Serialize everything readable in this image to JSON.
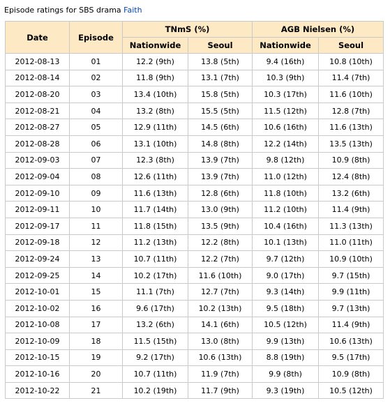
{
  "caption": {
    "prefix": "Episode ratings for SBS drama ",
    "link": "Faith"
  },
  "headers": {
    "date": "Date",
    "episode": "Episode",
    "tnms": "TNmS (%)",
    "agb": "AGB Nielsen (%)",
    "tnms_nationwide": "Nationwide",
    "tnms_seoul": "Seoul",
    "agb_nationwide": "Nationwide",
    "agb_seoul": "Seoul"
  },
  "rows": [
    {
      "date": "2012-08-13",
      "episode": "01",
      "tnms_nationwide": "12.2 (9th)",
      "tnms_seoul": "13.8 (5th)",
      "agb_nationwide": "9.4 (16th)",
      "agb_seoul": "10.8 (10th)"
    },
    {
      "date": "2012-08-14",
      "episode": "02",
      "tnms_nationwide": "11.8 (9th)",
      "tnms_seoul": "13.1 (7th)",
      "agb_nationwide": "10.3 (9th)",
      "agb_seoul": "11.4 (7th)"
    },
    {
      "date": "2012-08-20",
      "episode": "03",
      "tnms_nationwide": "13.4 (10th)",
      "tnms_seoul": "15.8 (5th)",
      "agb_nationwide": "10.3 (17th)",
      "agb_seoul": "11.6 (10th)"
    },
    {
      "date": "2012-08-21",
      "episode": "04",
      "tnms_nationwide": "13.2 (8th)",
      "tnms_seoul": "15.5 (5th)",
      "agb_nationwide": "11.5 (12th)",
      "agb_seoul": "12.8 (7th)"
    },
    {
      "date": "2012-08-27",
      "episode": "05",
      "tnms_nationwide": "12.9 (11th)",
      "tnms_seoul": "14.5 (6th)",
      "agb_nationwide": "10.6 (16th)",
      "agb_seoul": "11.6 (13th)"
    },
    {
      "date": "2012-08-28",
      "episode": "06",
      "tnms_nationwide": "13.1 (10th)",
      "tnms_seoul": "14.8 (8th)",
      "agb_nationwide": "12.2 (14th)",
      "agb_seoul": "13.5 (13th)"
    },
    {
      "date": "2012-09-03",
      "episode": "07",
      "tnms_nationwide": "12.3 (8th)",
      "tnms_seoul": "13.9 (7th)",
      "agb_nationwide": "9.8 (12th)",
      "agb_seoul": "10.9 (8th)"
    },
    {
      "date": "2012-09-04",
      "episode": "08",
      "tnms_nationwide": "12.6 (11th)",
      "tnms_seoul": "13.9 (7th)",
      "agb_nationwide": "11.0 (12th)",
      "agb_seoul": "12.4 (8th)"
    },
    {
      "date": "2012-09-10",
      "episode": "09",
      "tnms_nationwide": "11.6 (13th)",
      "tnms_seoul": "12.8 (6th)",
      "agb_nationwide": "11.8 (10th)",
      "agb_seoul": "13.2 (6th)"
    },
    {
      "date": "2012-09-11",
      "episode": "10",
      "tnms_nationwide": "11.7 (14th)",
      "tnms_seoul": "13.0 (9th)",
      "agb_nationwide": "11.2 (10th)",
      "agb_seoul": "11.4 (9th)"
    },
    {
      "date": "2012-09-17",
      "episode": "11",
      "tnms_nationwide": "11.8 (15th)",
      "tnms_seoul": "13.5 (9th)",
      "agb_nationwide": "10.4 (16th)",
      "agb_seoul": "11.3 (13th)"
    },
    {
      "date": "2012-09-18",
      "episode": "12",
      "tnms_nationwide": "11.2 (13th)",
      "tnms_seoul": "12.2 (8th)",
      "agb_nationwide": "10.1 (13th)",
      "agb_seoul": "11.0 (11th)"
    },
    {
      "date": "2012-09-24",
      "episode": "13",
      "tnms_nationwide": "10.7 (11th)",
      "tnms_seoul": "12.2 (7th)",
      "agb_nationwide": "9.7 (12th)",
      "agb_seoul": "10.9 (10th)"
    },
    {
      "date": "2012-09-25",
      "episode": "14",
      "tnms_nationwide": "10.2 (17th)",
      "tnms_seoul": "11.6 (10th)",
      "agb_nationwide": "9.0 (17th)",
      "agb_seoul": "9.7 (15th)"
    },
    {
      "date": "2012-10-01",
      "episode": "15",
      "tnms_nationwide": "11.1 (7th)",
      "tnms_seoul": "12.7 (7th)",
      "agb_nationwide": "9.3 (14th)",
      "agb_seoul": "9.9 (11th)"
    },
    {
      "date": "2012-10-02",
      "episode": "16",
      "tnms_nationwide": "9.6 (17th)",
      "tnms_seoul": "10.2 (13th)",
      "agb_nationwide": "9.5 (18th)",
      "agb_seoul": "9.7 (13th)"
    },
    {
      "date": "2012-10-08",
      "episode": "17",
      "tnms_nationwide": "13.2 (6th)",
      "tnms_seoul": "14.1 (6th)",
      "agb_nationwide": "10.5 (12th)",
      "agb_seoul": "11.4 (9th)"
    },
    {
      "date": "2012-10-09",
      "episode": "18",
      "tnms_nationwide": "11.5 (15th)",
      "tnms_seoul": "13.0 (8th)",
      "agb_nationwide": "9.9 (13th)",
      "agb_seoul": "10.6 (13th)"
    },
    {
      "date": "2012-10-15",
      "episode": "19",
      "tnms_nationwide": "9.2 (17th)",
      "tnms_seoul": "10.6 (13th)",
      "agb_nationwide": "8.8 (19th)",
      "agb_seoul": "9.5 (17th)"
    },
    {
      "date": "2012-10-16",
      "episode": "20",
      "tnms_nationwide": "10.7 (11th)",
      "tnms_seoul": "11.9 (7th)",
      "agb_nationwide": "9.9 (8th)",
      "agb_seoul": "10.9 (8th)"
    },
    {
      "date": "2012-10-22",
      "episode": "21",
      "tnms_nationwide": "10.2 (19th)",
      "tnms_seoul": "11.7 (9th)",
      "agb_nationwide": "9.3 (19th)",
      "agb_seoul": "10.5 (12th)"
    }
  ],
  "colors": {
    "header_bg": "#fde9c4",
    "border": "#c9c9c9",
    "link": "#0645ad"
  }
}
